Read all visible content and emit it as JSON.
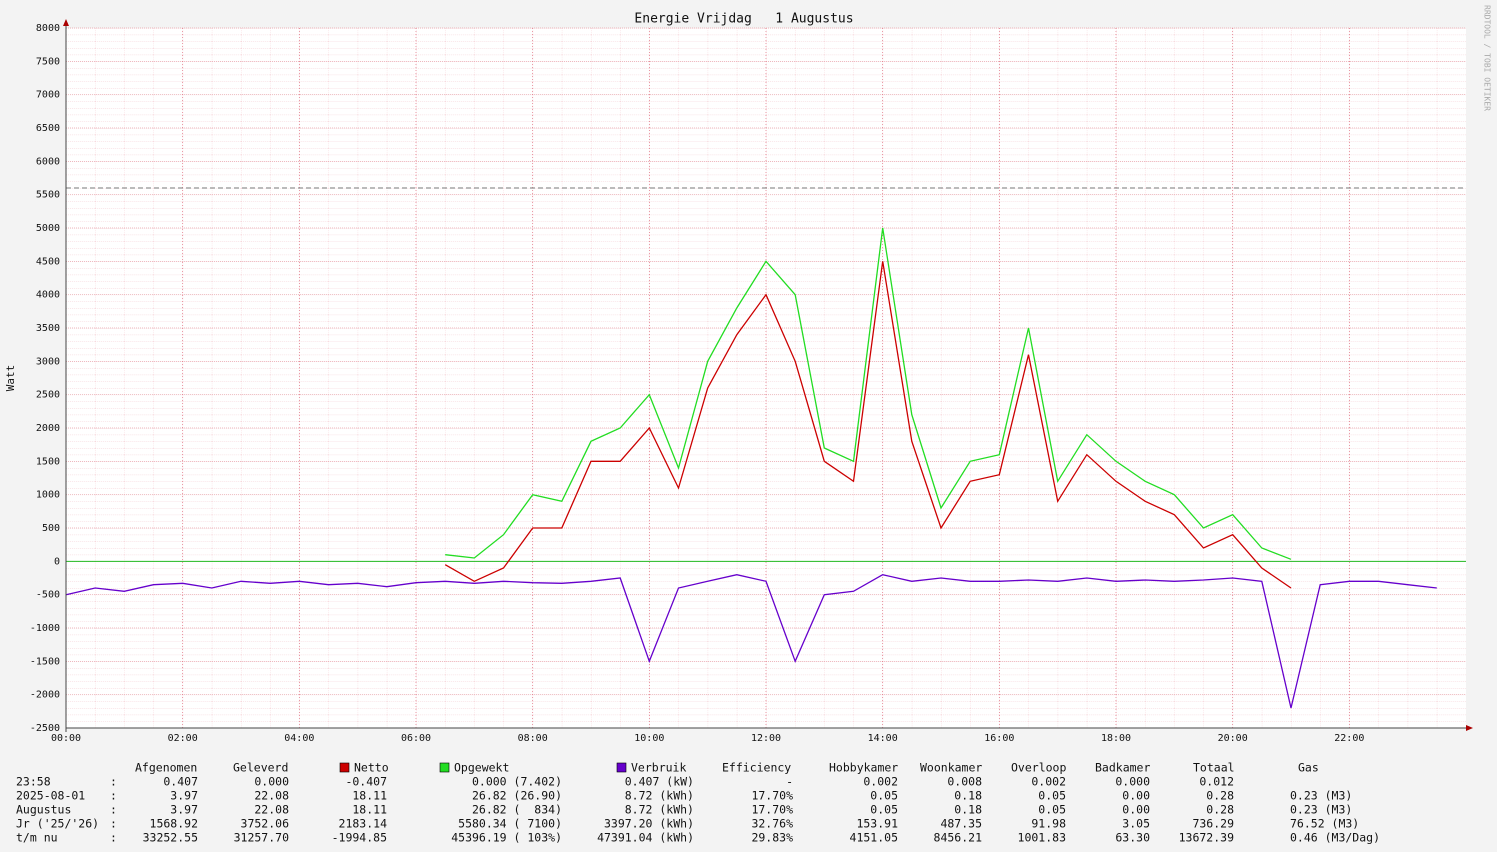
{
  "chart_data": {
    "type": "line",
    "title": "Energie Vrijdag   1 Augustus",
    "y_label": "Watt",
    "side_label": "RRDTOOL / TOBI OETIKER",
    "xlim": [
      0,
      24
    ],
    "xticks": [
      {
        "value": 0,
        "label": "00:00"
      },
      {
        "value": 2,
        "label": "02:00"
      },
      {
        "value": 4,
        "label": "04:00"
      },
      {
        "value": 6,
        "label": "06:00"
      },
      {
        "value": 8,
        "label": "08:00"
      },
      {
        "value": 10,
        "label": "10:00"
      },
      {
        "value": 12,
        "label": "12:00"
      },
      {
        "value": 14,
        "label": "14:00"
      },
      {
        "value": 16,
        "label": "16:00"
      },
      {
        "value": 18,
        "label": "18:00"
      },
      {
        "value": 20,
        "label": "20:00"
      },
      {
        "value": 22,
        "label": "22:00"
      }
    ],
    "ylim": [
      -2500,
      8000
    ],
    "yticks": [
      -2500,
      -2000,
      -1500,
      -1000,
      -500,
      0,
      500,
      1000,
      1500,
      2000,
      2500,
      3000,
      3500,
      4000,
      4500,
      5000,
      5500,
      6000,
      6500,
      7000,
      7500,
      8000
    ],
    "grid": true,
    "reference_line": 5600,
    "x": [
      0,
      0.5,
      1,
      1.5,
      2,
      2.5,
      3,
      3.5,
      4,
      4.5,
      5,
      5.5,
      6,
      6.5,
      7,
      7.5,
      8,
      8.5,
      9,
      9.5,
      10,
      10.5,
      11,
      11.5,
      12,
      12.5,
      13,
      13.5,
      14,
      14.5,
      15,
      15.5,
      16,
      16.5,
      17,
      17.5,
      18,
      18.5,
      19,
      19.5,
      20,
      20.5,
      21,
      21.5,
      22,
      22.5,
      23,
      23.5
    ],
    "series": [
      {
        "name": "Opgewekt",
        "color": "#22dd22",
        "values": [
          null,
          null,
          null,
          null,
          null,
          null,
          null,
          null,
          null,
          null,
          null,
          null,
          null,
          100,
          50,
          400,
          1000,
          900,
          1800,
          2000,
          2500,
          1400,
          3000,
          3800,
          4500,
          4000,
          1700,
          1500,
          5000,
          2200,
          800,
          1500,
          1600,
          3500,
          1200,
          1900,
          1500,
          1200,
          1000,
          500,
          700,
          200,
          30,
          null,
          null,
          null,
          null,
          null
        ]
      },
      {
        "name": "Netto",
        "color": "#cc0000",
        "values": [
          null,
          null,
          null,
          null,
          null,
          null,
          null,
          null,
          null,
          null,
          null,
          null,
          null,
          -50,
          -300,
          -100,
          500,
          500,
          1500,
          1500,
          2000,
          1100,
          2600,
          3400,
          4000,
          3000,
          1500,
          1200,
          4500,
          1800,
          500,
          1200,
          1300,
          3100,
          900,
          1600,
          1200,
          900,
          700,
          200,
          400,
          -100,
          -400,
          null,
          null,
          null,
          null,
          null
        ]
      },
      {
        "name": "Verbruik",
        "color": "#6600cc",
        "values": [
          -500,
          -400,
          -450,
          -350,
          -330,
          -400,
          -300,
          -330,
          -300,
          -350,
          -330,
          -380,
          -320,
          -300,
          -330,
          -300,
          -320,
          -330,
          -300,
          -250,
          -1500,
          -400,
          -300,
          -200,
          -300,
          -1500,
          -500,
          -450,
          -200,
          -300,
          -250,
          -300,
          -300,
          -280,
          -300,
          -250,
          -300,
          -280,
          -300,
          -280,
          -250,
          -300,
          -2200,
          -350,
          -300,
          -300,
          -350,
          -400
        ]
      }
    ]
  },
  "table": {
    "headers": [
      "Afgenomen",
      "Geleverd",
      "Netto",
      "Opgewekt",
      "Verbruik",
      "Efficiency",
      "Hobbykamer",
      "Woonkamer",
      "Overloop",
      "Badkamer",
      "Totaal",
      "Gas"
    ],
    "rows": [
      [
        "23:58",
        ":",
        "0.407",
        "0.000",
        "-0.407",
        "0.000 (7.402)",
        "0.407 (kW)",
        "-",
        "0.002",
        "0.008",
        "0.002",
        "0.000",
        "0.012",
        ""
      ],
      [
        "2025-08-01",
        ":",
        "3.97",
        "22.08",
        "18.11",
        "26.82 (26.90)",
        "8.72 (kWh)",
        "17.70%",
        "0.05",
        "0.18",
        "0.05",
        "0.00",
        "0.28",
        "0.23 (M3)"
      ],
      [
        "Augustus",
        ":",
        "3.97",
        "22.08",
        "18.11",
        "26.82 (  834)",
        "8.72 (kWh)",
        "17.70%",
        "0.05",
        "0.18",
        "0.05",
        "0.00",
        "0.28",
        "0.23 (M3)"
      ],
      [
        "Jr ('25/'26)",
        ":",
        "1568.92",
        "3752.06",
        "2183.14",
        "5580.34 ( 7100)",
        "3397.20 (kWh)",
        "32.76%",
        "153.91",
        "487.35",
        "91.98",
        "3.05",
        "736.29",
        "76.52 (M3)"
      ],
      [
        "t/m nu",
        ":",
        "33252.55",
        "31257.70",
        "-1994.85",
        "45396.19 ( 103%)",
        "47391.04 (kWh)",
        "29.83%",
        "4151.05",
        "8456.21",
        "1001.83",
        "63.30",
        "13672.39",
        "0.46 (M3/Dag)"
      ]
    ]
  }
}
